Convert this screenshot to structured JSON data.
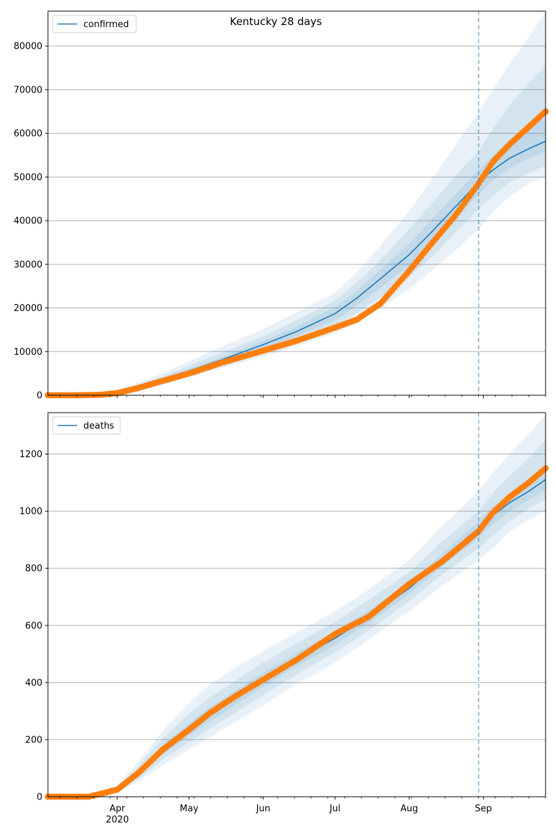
{
  "figure": {
    "title": "Kentucky 28 days"
  },
  "colors": {
    "model": "#1f77b4",
    "observed": "#ff7f0e",
    "band": "#1f77b4",
    "grid": "#b0b0b0",
    "forecast_line": "#1f77b4"
  },
  "chart_data": [
    {
      "type": "line",
      "name": "confirmed",
      "legend": "confirmed",
      "legend_position": "top-left",
      "grid": "y",
      "x_range": [
        "2020-03-03",
        "2020-09-27"
      ],
      "ylim": [
        0,
        88000
      ],
      "yticks": [
        0,
        10000,
        20000,
        30000,
        40000,
        50000,
        60000,
        70000,
        80000
      ],
      "forecast_start": "2020-08-30",
      "series": [
        {
          "name": "confirmed",
          "role": "model",
          "x": [
            "2020-03-03",
            "2020-03-15",
            "2020-03-25",
            "2020-04-01",
            "2020-04-10",
            "2020-04-20",
            "2020-05-01",
            "2020-05-15",
            "2020-06-01",
            "2020-06-15",
            "2020-07-01",
            "2020-07-10",
            "2020-07-20",
            "2020-08-01",
            "2020-08-10",
            "2020-08-20",
            "2020-08-30",
            "2020-09-05",
            "2020-09-12",
            "2020-09-20",
            "2020-09-27"
          ],
          "values": [
            0,
            0,
            200,
            700,
            1800,
            3500,
            5600,
            8200,
            11600,
            14600,
            18700,
            22200,
            26700,
            32200,
            37200,
            43000,
            48800,
            51600,
            54300,
            56500,
            58200
          ]
        },
        {
          "name": "observed",
          "role": "observed",
          "x": [
            "2020-03-03",
            "2020-03-15",
            "2020-03-25",
            "2020-04-01",
            "2020-04-10",
            "2020-04-20",
            "2020-05-01",
            "2020-05-15",
            "2020-06-01",
            "2020-06-15",
            "2020-07-01",
            "2020-07-10",
            "2020-07-20",
            "2020-08-01",
            "2020-08-10",
            "2020-08-20",
            "2020-08-30",
            "2020-09-05",
            "2020-09-12",
            "2020-09-20",
            "2020-09-27"
          ],
          "values": [
            0,
            0,
            100,
            500,
            1700,
            3300,
            5000,
            7500,
            10200,
            12500,
            15500,
            17300,
            21000,
            28500,
            34500,
            41000,
            48500,
            53500,
            57500,
            61500,
            65000
          ]
        }
      ],
      "bands": [
        {
          "lo": [
            0,
            0,
            50,
            300,
            1000,
            2400,
            4000,
            6300,
            8800,
            11200,
            14200,
            16800,
            19900,
            24300,
            28300,
            33000,
            38000,
            42000,
            45500,
            48500,
            50000
          ],
          "hi": [
            0,
            0,
            450,
            1300,
            3000,
            5000,
            7800,
            11200,
            15200,
            19000,
            23500,
            28200,
            34300,
            42200,
            49200,
            57000,
            65000,
            70000,
            76000,
            82000,
            88000
          ]
        },
        {
          "lo": [
            0,
            0,
            100,
            400,
            1300,
            2800,
            4600,
            7000,
            9800,
            12300,
            15800,
            18800,
            22500,
            27000,
            31500,
            37000,
            42500,
            45800,
            48700,
            51000,
            52500
          ],
          "hi": [
            0,
            0,
            350,
            1050,
            2450,
            4300,
            6800,
            9800,
            13500,
            17200,
            21700,
            25800,
            31000,
            38000,
            43700,
            50000,
            56000,
            61000,
            66500,
            71500,
            75500
          ]
        },
        {
          "lo": [
            0,
            0,
            150,
            550,
            1550,
            3100,
            5100,
            7600,
            10700,
            13500,
            17200,
            20500,
            24600,
            29600,
            34400,
            40000,
            46000,
            49300,
            52000,
            54300,
            55800
          ],
          "hi": [
            0,
            0,
            250,
            850,
            2050,
            3900,
            6100,
            8800,
            12500,
            15700,
            20200,
            23900,
            28800,
            34800,
            40000,
            46000,
            51500,
            55000,
            58500,
            61500,
            63500
          ]
        }
      ]
    },
    {
      "type": "line",
      "name": "deaths",
      "legend": "deaths",
      "legend_position": "top-left",
      "grid": "y",
      "x_range": [
        "2020-03-03",
        "2020-09-27"
      ],
      "ylim": [
        0,
        1345
      ],
      "yticks": [
        0,
        200,
        400,
        600,
        800,
        1000,
        1200
      ],
      "forecast_start": "2020-08-30",
      "series": [
        {
          "name": "deaths",
          "role": "model",
          "x": [
            "2020-03-03",
            "2020-03-20",
            "2020-04-01",
            "2020-04-10",
            "2020-04-20",
            "2020-05-01",
            "2020-05-10",
            "2020-05-20",
            "2020-06-01",
            "2020-06-15",
            "2020-07-01",
            "2020-07-15",
            "2020-08-01",
            "2020-08-15",
            "2020-08-30",
            "2020-09-05",
            "2020-09-12",
            "2020-09-20",
            "2020-09-27"
          ],
          "values": [
            0,
            0,
            25,
            85,
            165,
            235,
            290,
            345,
            410,
            480,
            555,
            630,
            730,
            830,
            935,
            985,
            1030,
            1070,
            1110
          ]
        },
        {
          "name": "observed",
          "role": "observed",
          "x": [
            "2020-03-03",
            "2020-03-20",
            "2020-04-01",
            "2020-04-10",
            "2020-04-20",
            "2020-05-01",
            "2020-05-10",
            "2020-05-20",
            "2020-06-01",
            "2020-06-15",
            "2020-07-01",
            "2020-07-15",
            "2020-08-01",
            "2020-08-15",
            "2020-08-30",
            "2020-09-05",
            "2020-09-12",
            "2020-09-20",
            "2020-09-27"
          ],
          "values": [
            0,
            0,
            25,
            85,
            165,
            235,
            295,
            350,
            410,
            480,
            570,
            630,
            745,
            825,
            930,
            995,
            1050,
            1100,
            1150
          ]
        }
      ],
      "bands": [
        {
          "lo": [
            0,
            0,
            15,
            55,
            110,
            165,
            210,
            260,
            320,
            395,
            470,
            550,
            650,
            740,
            830,
            870,
            930,
            970,
            1000
          ],
          "hi": [
            0,
            0,
            40,
            125,
            230,
            330,
            395,
            450,
            510,
            575,
            650,
            725,
            830,
            950,
            1070,
            1135,
            1200,
            1270,
            1340
          ]
        },
        {
          "lo": [
            0,
            0,
            18,
            65,
            130,
            190,
            240,
            292,
            355,
            428,
            505,
            582,
            685,
            780,
            870,
            915,
            965,
            1010,
            1040
          ],
          "hi": [
            0,
            0,
            34,
            108,
            205,
            290,
            350,
            405,
            470,
            538,
            612,
            690,
            785,
            895,
            1000,
            1065,
            1125,
            1185,
            1250
          ]
        },
        {
          "lo": [
            0,
            0,
            21,
            75,
            148,
            212,
            265,
            320,
            385,
            456,
            532,
            608,
            710,
            808,
            905,
            955,
            1000,
            1040,
            1075
          ],
          "hi": [
            0,
            0,
            29,
            95,
            182,
            258,
            315,
            370,
            435,
            504,
            578,
            652,
            750,
            852,
            965,
            1015,
            1060,
            1100,
            1145
          ]
        }
      ]
    }
  ],
  "x_axis": {
    "tick_labels": [
      "Apr",
      "May",
      "Jun",
      "Jul",
      "Aug",
      "Sep"
    ],
    "tick_dates": [
      "2020-04-01",
      "2020-05-01",
      "2020-06-01",
      "2020-07-01",
      "2020-08-01",
      "2020-09-01"
    ],
    "year_label": "2020"
  }
}
